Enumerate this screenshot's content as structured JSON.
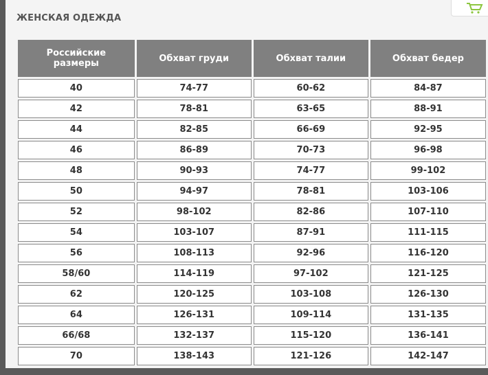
{
  "header": {
    "title": "ЖЕНСКАЯ ОДЕЖДА"
  },
  "table": {
    "columns": [
      "Российские размеры",
      "Обхват груди",
      "Обхват талии",
      "Обхват бедер"
    ],
    "rows": [
      [
        "40",
        "74-77",
        "60-62",
        "84-87"
      ],
      [
        "42",
        "78-81",
        "63-65",
        "88-91"
      ],
      [
        "44",
        "82-85",
        "66-69",
        "92-95"
      ],
      [
        "46",
        "86-89",
        "70-73",
        "96-98"
      ],
      [
        "48",
        "90-93",
        "74-77",
        "99-102"
      ],
      [
        "50",
        "94-97",
        "78-81",
        "103-106"
      ],
      [
        "52",
        "98-102",
        "82-86",
        "107-110"
      ],
      [
        "54",
        "103-107",
        "87-91",
        "111-115"
      ],
      [
        "56",
        "108-113",
        "92-96",
        "116-120"
      ],
      [
        "58/60",
        "114-119",
        "97-102",
        "121-125"
      ],
      [
        "62",
        "120-125",
        "103-108",
        "126-130"
      ],
      [
        "64",
        "126-131",
        "109-114",
        "131-135"
      ],
      [
        "66/68",
        "132-137",
        "115-120",
        "136-141"
      ],
      [
        "70",
        "138-143",
        "121-126",
        "142-147"
      ]
    ]
  }
}
